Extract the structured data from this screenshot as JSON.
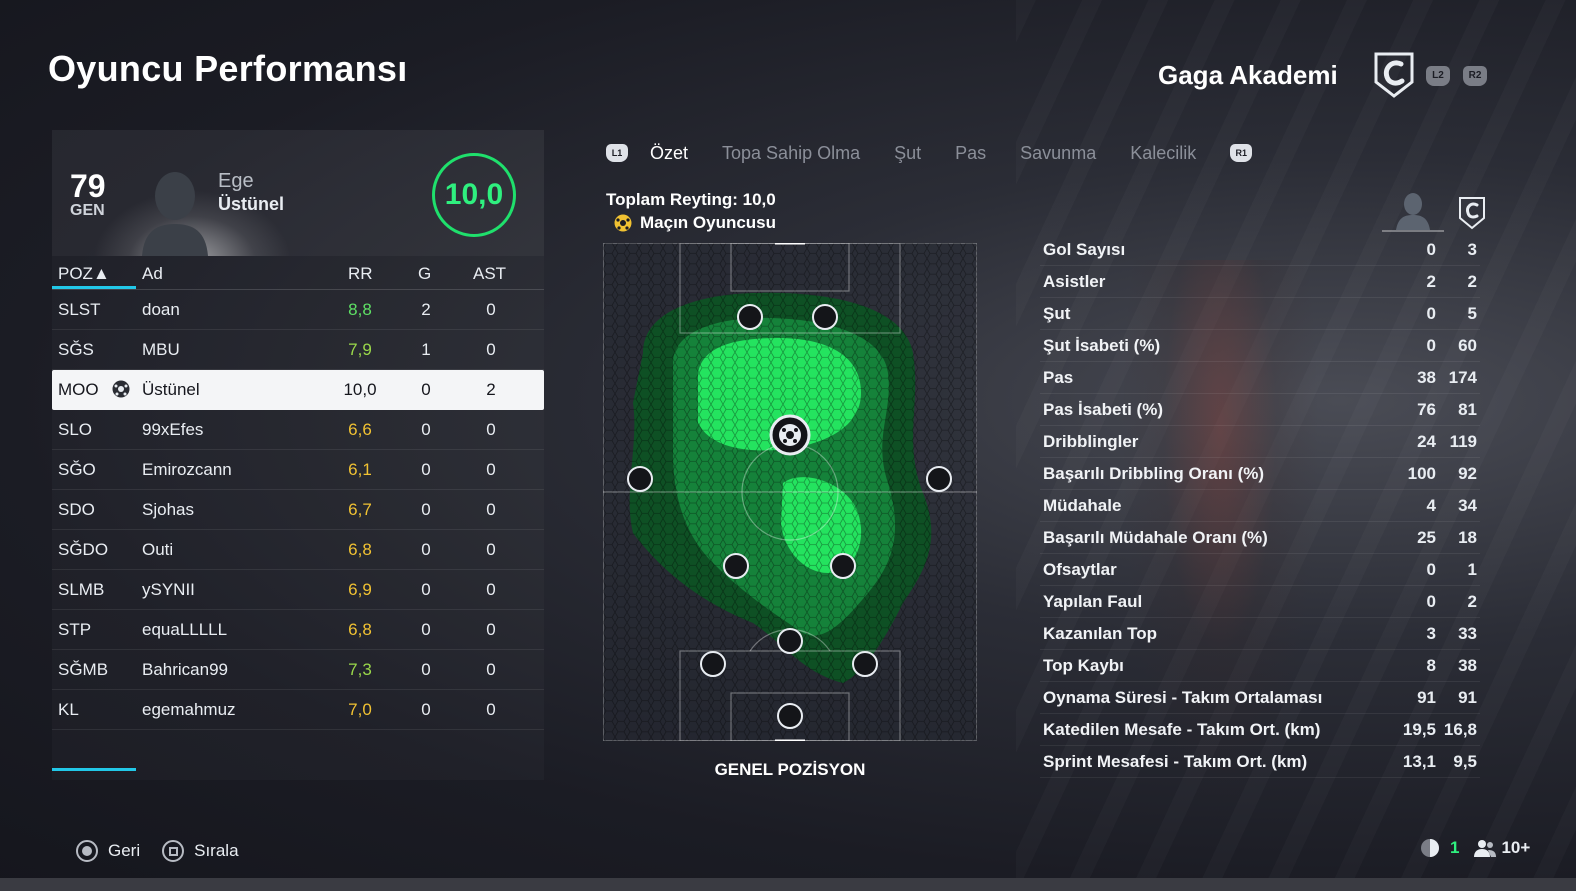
{
  "header": {
    "title": "Oyuncu Performansı",
    "club_name": "Gaga Akademi",
    "btn_l2": "L2",
    "btn_r2": "R2"
  },
  "player_card": {
    "overall": "79",
    "overall_label": "GEN",
    "first_name": "Ege",
    "last_name": "Üstünel",
    "match_rating": "10,0"
  },
  "table": {
    "headers": {
      "pos": "POZ▲",
      "name": "Ad",
      "rr": "RR",
      "g": "G",
      "ast": "AST"
    },
    "rows": [
      {
        "pos": "SLST",
        "name": "doan",
        "rr": "8,8",
        "g": "2",
        "ast": "0",
        "rr_color": "#5ee064"
      },
      {
        "pos": "SĞS",
        "name": "MBU",
        "rr": "7,9",
        "g": "1",
        "ast": "0",
        "rr_color": "#9ad84a"
      },
      {
        "pos": "MOO",
        "name": "Üstünel",
        "rr": "10,0",
        "g": "0",
        "ast": "2",
        "selected": true
      },
      {
        "pos": "SLO",
        "name": "99xEfes",
        "rr": "6,6",
        "g": "0",
        "ast": "0",
        "rr_color": "#f1c232"
      },
      {
        "pos": "SĞO",
        "name": "Emirozcann",
        "rr": "6,1",
        "g": "0",
        "ast": "0",
        "rr_color": "#f1c232"
      },
      {
        "pos": "SDO",
        "name": "Sjohas",
        "rr": "6,7",
        "g": "0",
        "ast": "0",
        "rr_color": "#f1c232"
      },
      {
        "pos": "SĞDO",
        "name": "Outi",
        "rr": "6,8",
        "g": "0",
        "ast": "0",
        "rr_color": "#f1c232"
      },
      {
        "pos": "SLMB",
        "name": "ySYNII",
        "rr": "6,9",
        "g": "0",
        "ast": "0",
        "rr_color": "#f1c232"
      },
      {
        "pos": "STP",
        "name": "equaLLLLL",
        "rr": "6,8",
        "g": "0",
        "ast": "0",
        "rr_color": "#f1c232"
      },
      {
        "pos": "SĞMB",
        "name": "Bahrican99",
        "rr": "7,3",
        "g": "0",
        "ast": "0",
        "rr_color": "#9ad84a"
      },
      {
        "pos": "KL",
        "name": "egemahmuz",
        "rr": "7,0",
        "g": "0",
        "ast": "0",
        "rr_color": "#f1c232"
      }
    ]
  },
  "tabs": {
    "left_button": "L1",
    "right_button": "R1",
    "items": [
      "Özet",
      "Topa Sahip Olma",
      "Şut",
      "Pas",
      "Savunma",
      "Kalecilik"
    ],
    "active": "Özet"
  },
  "summary": {
    "total_rating": "Toplam Reyting: 10,0",
    "motm": "Maçın Oyuncusu",
    "pitch_label": "GENEL POZİSYON"
  },
  "stats": [
    {
      "label": "Gol Sayısı",
      "player": "0",
      "team": "3"
    },
    {
      "label": "Asistler",
      "player": "2",
      "team": "2"
    },
    {
      "label": "Şut",
      "player": "0",
      "team": "5"
    },
    {
      "label": "Şut İsabeti (%)",
      "player": "0",
      "team": "60"
    },
    {
      "label": "Pas",
      "player": "38",
      "team": "174"
    },
    {
      "label": "Pas İsabeti (%)",
      "player": "76",
      "team": "81"
    },
    {
      "label": "Dribblingler",
      "player": "24",
      "team": "119"
    },
    {
      "label": "Başarılı Dribbling Oranı (%)",
      "player": "100",
      "team": "92"
    },
    {
      "label": "Müdahale",
      "player": "4",
      "team": "34"
    },
    {
      "label": "Başarılı Müdahale Oranı (%)",
      "player": "25",
      "team": "18"
    },
    {
      "label": "Ofsaytlar",
      "player": "0",
      "team": "1"
    },
    {
      "label": "Yapılan Faul",
      "player": "0",
      "team": "2"
    },
    {
      "label": "Kazanılan Top",
      "player": "3",
      "team": "33"
    },
    {
      "label": "Top Kaybı",
      "player": "8",
      "team": "38"
    },
    {
      "label": "Oynama Süresi - Takım Ortalaması",
      "player": "91",
      "team": "91"
    },
    {
      "label": "Katedilen Mesafe - Takım Ort. (km)",
      "player": "19,5",
      "team": "16,8"
    },
    {
      "label": "Sprint Mesafesi - Takım Ort. (km)",
      "player": "13,1",
      "team": "9,5"
    }
  ],
  "footer": {
    "back": "Geri",
    "sort": "Sırala",
    "net_count": "1",
    "players_count": "10+"
  },
  "colors": {
    "accent_green": "#2ff07f",
    "accent_cyan": "#22c8e8",
    "rating_yellow": "#f1c232"
  }
}
